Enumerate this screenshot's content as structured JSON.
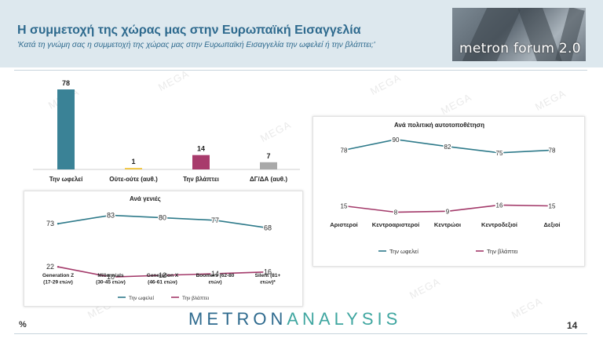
{
  "header": {
    "title": "Η συμμετοχή της χώρας μας στην Ευρωπαϊκή Εισαγγελία",
    "subtitle": "'Κατά τη γνώμη σας η συμμετοχή της χώρας μας στην Ευρωπαϊκή Εισαγγελία την ωφελεί ή την βλάπτει;'",
    "logo_text": "metron forum 2.0"
  },
  "footer": {
    "brand_part1": "METRON",
    "brand_part2": "ANALYSIS",
    "percent_sign": "%",
    "page_number": "14"
  },
  "watermark": "MEGA",
  "colors": {
    "benefit": "#2e7a8a",
    "harm": "#a33a6a",
    "neutral": "#f2c94c",
    "dk": "#a9a9a9",
    "title": "#2e6a8e"
  },
  "chart_data": [
    {
      "type": "bar",
      "categories": [
        "Την ωφελεί",
        "Ούτε-ούτε (αυθ.)",
        "Την βλάπτει",
        "ΔΓ/ΔΑ (αυθ.)"
      ],
      "values": [
        78,
        1,
        14,
        7
      ],
      "colors": [
        "#3a8296",
        "#f2c94c",
        "#a83b6c",
        "#a9a9a9"
      ],
      "ylim": [
        0,
        78
      ],
      "grid": false
    },
    {
      "type": "line",
      "title": "Ανά γενιές",
      "categories": [
        "Generation Z (17-29 ετών)",
        "Millennials (30-45 ετών)",
        "Generation X (46-61 ετών)",
        "Boomers (62-80 ετών)",
        "Silent (81+ ετών)*"
      ],
      "series": [
        {
          "name": "Την ωφελεί",
          "values": [
            73,
            83,
            80,
            77,
            68
          ],
          "color": "#2e7a8a"
        },
        {
          "name": "Την βλάπτει",
          "values": [
            22,
            10,
            12,
            14,
            16
          ],
          "color": "#a33a6a"
        }
      ],
      "ylim": [
        0,
        100
      ],
      "grid": false,
      "legend": "bottom"
    },
    {
      "type": "line",
      "title": "Ανά πολιτική αυτοτοποθέτηση",
      "categories": [
        "Αριστεροί",
        "Κεντροαριστεροί",
        "Κεντρώοι",
        "Κεντροδεξιοί",
        "Δεξιοί"
      ],
      "series": [
        {
          "name": "Την ωφελεί",
          "values": [
            78,
            90,
            82,
            75,
            78
          ],
          "color": "#2e7a8a"
        },
        {
          "name": "Την βλάπτει",
          "values": [
            15,
            8,
            9,
            16,
            15
          ],
          "color": "#a33a6a"
        }
      ],
      "ylim": [
        0,
        100
      ],
      "grid": false,
      "legend": "bottom"
    }
  ]
}
